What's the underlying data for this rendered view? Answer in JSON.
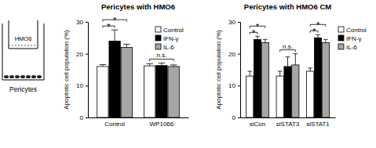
{
  "diagram": {
    "labels": [
      "HMO6",
      "Pericytes"
    ]
  },
  "chart_data": [
    {
      "type": "bar",
      "title": "Pericytes with HMO6",
      "y_label": "Apoptotic cell population (%)",
      "categories": [
        "Control",
        "WP1066"
      ],
      "series": [
        {
          "name": "Control",
          "color": "#ffffff",
          "values": [
            16,
            16.2
          ],
          "errors": [
            0.6,
            0.7
          ]
        },
        {
          "name": "IFN-γ",
          "color": "#000000",
          "values": [
            24,
            16.3
          ],
          "errors": [
            3.5,
            0.8
          ]
        },
        {
          "name": "IL-6",
          "color": "#a6a6a6",
          "values": [
            22,
            16
          ],
          "errors": [
            1,
            0.5
          ]
        }
      ],
      "ylim": [
        0,
        30
      ],
      "yticks": [
        0,
        10,
        20,
        30
      ],
      "legend": "upper right",
      "annotations": [
        {
          "text": "*",
          "group": 0,
          "series": [
            0,
            1
          ]
        },
        {
          "text": "*",
          "group": 0,
          "series": [
            0,
            2
          ]
        },
        {
          "text": "n.s.",
          "group": 1,
          "series": [
            0,
            2
          ]
        }
      ]
    },
    {
      "type": "bar",
      "title": "Pericytes with HMO6 CM",
      "y_label": "Apoptotic cell population (%)",
      "categories": [
        "siCon",
        "siSTAT3",
        "siSTAT1"
      ],
      "series": [
        {
          "name": "Control",
          "color": "#ffffff",
          "values": [
            13,
            13,
            14.5
          ],
          "errors": [
            1.5,
            1.5,
            1
          ]
        },
        {
          "name": "IFN-γ",
          "color": "#000000",
          "values": [
            24.5,
            16,
            25
          ],
          "errors": [
            1,
            3,
            1
          ]
        },
        {
          "name": "IL-6",
          "color": "#a6a6a6",
          "values": [
            23.5,
            16.5,
            23.5
          ],
          "errors": [
            1,
            3.5,
            1
          ]
        }
      ],
      "ylim": [
        0,
        30
      ],
      "yticks": [
        0,
        10,
        20,
        30
      ],
      "legend": "right",
      "annotations": [
        {
          "text": "*",
          "group": 0,
          "series": [
            0,
            1
          ]
        },
        {
          "text": "*",
          "group": 0,
          "series": [
            0,
            2
          ]
        },
        {
          "text": "n.s.",
          "group": 1,
          "series": [
            0,
            2
          ]
        },
        {
          "text": "*",
          "group": 2,
          "series": [
            0,
            1
          ]
        },
        {
          "text": "*",
          "group": 2,
          "series": [
            0,
            2
          ]
        }
      ]
    }
  ]
}
